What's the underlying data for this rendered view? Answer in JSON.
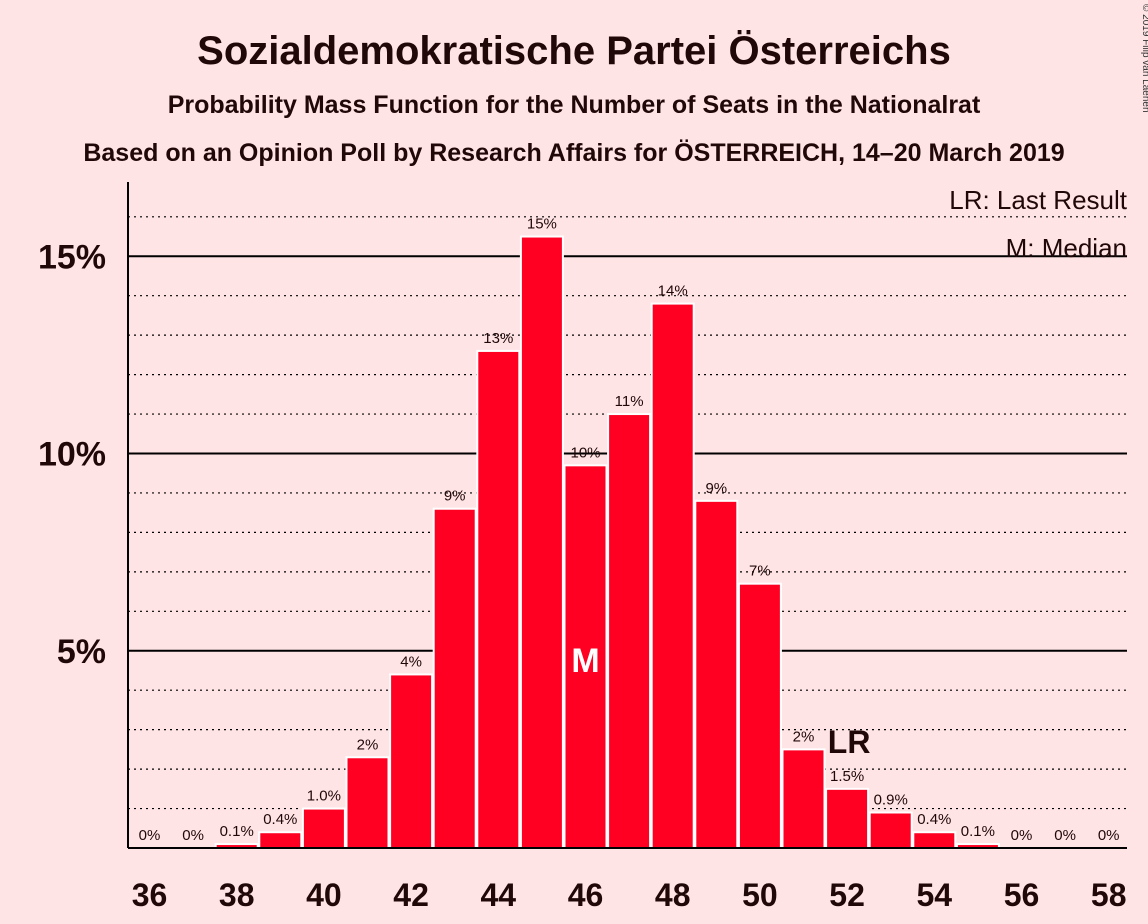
{
  "header": {
    "title": "Sozialdemokratische Partei Österreichs",
    "subtitle": "Probability Mass Function for the Number of Seats in the Nationalrat",
    "subtitle2": "Based on an Opinion Poll by Research Affairs for ÖSTERREICH, 14–20 March 2019",
    "copyright": "© 2019 Filip van Laenen"
  },
  "legend": {
    "last_result": "LR: Last Result",
    "median": "M: Median"
  },
  "markers": {
    "median_label": "M",
    "median_seat": 46,
    "last_result_label": "LR",
    "last_result_seat": 52
  },
  "colors": {
    "background": "#ffe4e6",
    "bar": "#ff0022",
    "text": "#200808"
  },
  "chart_data": {
    "type": "bar",
    "x": [
      36,
      37,
      38,
      39,
      40,
      41,
      42,
      43,
      44,
      45,
      46,
      47,
      48,
      49,
      50,
      51,
      52,
      53,
      54,
      55,
      56,
      57,
      58
    ],
    "values": [
      0,
      0,
      0.1,
      0.4,
      1.0,
      2.3,
      4.4,
      8.6,
      12.6,
      15.5,
      9.7,
      11.0,
      13.8,
      8.8,
      6.7,
      2.5,
      1.5,
      0.9,
      0.4,
      0.1,
      0,
      0,
      0
    ],
    "data_labels": [
      "0%",
      "0%",
      "0.1%",
      "0.4%",
      "1.0%",
      "2%",
      "4%",
      "9%",
      "13%",
      "15%",
      "10%",
      "11%",
      "14%",
      "9%",
      "7%",
      "2%",
      "1.5%",
      "0.9%",
      "0.4%",
      "0.1%",
      "0%",
      "0%",
      "0%"
    ],
    "x_ticks": [
      "36",
      "38",
      "40",
      "42",
      "44",
      "46",
      "48",
      "50",
      "52",
      "54",
      "56",
      "58"
    ],
    "y_ticks": [
      {
        "value": 5,
        "label": "5%"
      },
      {
        "value": 10,
        "label": "10%"
      },
      {
        "value": 15,
        "label": "15%"
      }
    ],
    "ylim": [
      0,
      17
    ],
    "grid": true,
    "legend_position": "top-right"
  }
}
